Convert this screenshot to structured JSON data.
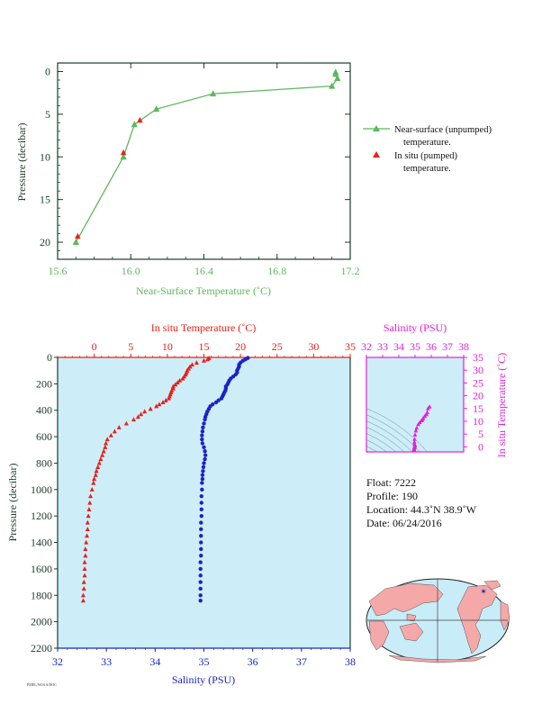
{
  "colors": {
    "green": "#5cb85c",
    "red": "#e8201a",
    "blue": "#1b23c8",
    "magenta": "#e020d8",
    "navy": "#1a1a8c",
    "dark": "#1a3c2a",
    "plot_bg": "#cdeef8",
    "land": "#f4a8a8",
    "ocean": "#c8ecf8"
  },
  "chart_data": [
    {
      "type": "scatter",
      "xlabel": "Near-Surface Temperature (˚C)",
      "ylabel": "Pressure (decibar)",
      "xlim": [
        15.6,
        17.2
      ],
      "ylim": [
        22,
        -1
      ],
      "x_ticks": [
        "15.6",
        "16.0",
        "16.4",
        "16.8",
        "17.2"
      ],
      "y_ticks": [
        "0",
        "5",
        "10",
        "15",
        "20"
      ],
      "legend": {
        "position": "right",
        "line1_a": "Near-surface (unpumped)",
        "line1_b": "temperature.",
        "line2_a": "In situ (pumped)",
        "line2_b": "temperature."
      },
      "series": [
        {
          "name": "Near-surface (unpumped) temperature.",
          "points": [
            [
              17.12,
              0.1
            ],
            [
              17.12,
              0.3
            ],
            [
              17.13,
              0.8
            ],
            [
              17.1,
              1.7
            ],
            [
              16.45,
              2.6
            ],
            [
              16.14,
              4.4
            ],
            [
              16.02,
              6.2
            ],
            [
              15.96,
              10
            ],
            [
              15.7,
              20
            ]
          ]
        },
        {
          "name": "In situ (pumped) temperature.",
          "points": [
            [
              16.05,
              5.7
            ],
            [
              15.96,
              9.5
            ],
            [
              15.71,
              19.3
            ]
          ]
        }
      ]
    },
    {
      "type": "scatter",
      "ylabel": "Pressure (decibar)",
      "top_xlabel": "In situ Temperature (˚C)",
      "bottom_xlabel": "Salinity (PSU)",
      "temp_lim": [
        -5,
        35
      ],
      "sal_lim": [
        32,
        38
      ],
      "ylim": [
        0,
        2200
      ],
      "temp_ticks": [
        "0",
        "5",
        "10",
        "15",
        "20",
        "25",
        "30",
        "35"
      ],
      "sal_ticks": [
        "32",
        "33",
        "34",
        "35",
        "36",
        "37",
        "38"
      ],
      "y_ticks": [
        "0",
        "200",
        "400",
        "600",
        "800",
        "1000",
        "1200",
        "1400",
        "1600",
        "1800",
        "2000",
        "2200"
      ],
      "series": [
        {
          "name": "In situ Temperature",
          "points": [
            [
              15.7,
              5
            ],
            [
              15.5,
              15
            ],
            [
              15,
              25
            ],
            [
              14,
              40
            ],
            [
              13.4,
              55
            ],
            [
              13.1,
              70
            ],
            [
              12.9,
              85
            ],
            [
              12.7,
              100
            ],
            [
              12.6,
              115
            ],
            [
              12.5,
              130
            ],
            [
              12.3,
              145
            ],
            [
              12.1,
              160
            ],
            [
              11.7,
              175
            ],
            [
              11.4,
              190
            ],
            [
              11.1,
              205
            ],
            [
              10.8,
              220
            ],
            [
              10.8,
              235
            ],
            [
              10.6,
              250
            ],
            [
              10.5,
              265
            ],
            [
              10.4,
              280
            ],
            [
              10.3,
              295
            ],
            [
              10.2,
              310
            ],
            [
              9.8,
              325
            ],
            [
              9.4,
              340
            ],
            [
              8.9,
              355
            ],
            [
              8.5,
              370
            ],
            [
              7.7,
              390
            ],
            [
              6.9,
              410
            ],
            [
              6.4,
              430
            ],
            [
              6.0,
              450
            ],
            [
              5.4,
              470
            ],
            [
              4.4,
              500
            ],
            [
              3.4,
              530
            ],
            [
              2.8,
              560
            ],
            [
              2.3,
              590
            ],
            [
              1.8,
              620
            ],
            [
              1.6,
              650
            ],
            [
              1.5,
              680
            ],
            [
              1.3,
              710
            ],
            [
              1.1,
              740
            ],
            [
              0.9,
              770
            ],
            [
              0.7,
              800
            ],
            [
              0.5,
              830
            ],
            [
              0.3,
              860
            ],
            [
              0.2,
              890
            ],
            [
              0.0,
              920
            ],
            [
              -0.1,
              950
            ],
            [
              -0.3,
              1000
            ],
            [
              -0.5,
              1050
            ],
            [
              -0.6,
              1100
            ],
            [
              -0.7,
              1150
            ],
            [
              -0.8,
              1200
            ],
            [
              -0.9,
              1250
            ],
            [
              -0.9,
              1300
            ],
            [
              -1.0,
              1350
            ],
            [
              -1.1,
              1400
            ],
            [
              -1.2,
              1450
            ],
            [
              -1.2,
              1500
            ],
            [
              -1.3,
              1550
            ],
            [
              -1.3,
              1600
            ],
            [
              -1.3,
              1650
            ],
            [
              -1.4,
              1700
            ],
            [
              -1.4,
              1750
            ],
            [
              -1.5,
              1800
            ],
            [
              -1.5,
              1840
            ]
          ]
        },
        {
          "name": "Salinity",
          "points": [
            [
              35.9,
              5
            ],
            [
              35.85,
              15
            ],
            [
              35.8,
              25
            ],
            [
              35.75,
              40
            ],
            [
              35.72,
              55
            ],
            [
              35.72,
              70
            ],
            [
              35.7,
              85
            ],
            [
              35.68,
              100
            ],
            [
              35.68,
              115
            ],
            [
              35.65,
              130
            ],
            [
              35.6,
              145
            ],
            [
              35.55,
              160
            ],
            [
              35.52,
              175
            ],
            [
              35.5,
              190
            ],
            [
              35.48,
              205
            ],
            [
              35.45,
              220
            ],
            [
              35.45,
              235
            ],
            [
              35.44,
              250
            ],
            [
              35.42,
              265
            ],
            [
              35.4,
              280
            ],
            [
              35.38,
              295
            ],
            [
              35.36,
              310
            ],
            [
              35.3,
              325
            ],
            [
              35.25,
              340
            ],
            [
              35.18,
              355
            ],
            [
              35.13,
              370
            ],
            [
              35.1,
              390
            ],
            [
              35.07,
              410
            ],
            [
              35.05,
              430
            ],
            [
              35.03,
              450
            ],
            [
              35.02,
              470
            ],
            [
              35.0,
              500
            ],
            [
              34.98,
              530
            ],
            [
              34.97,
              560
            ],
            [
              34.96,
              590
            ],
            [
              34.96,
              620
            ],
            [
              34.97,
              650
            ],
            [
              35.0,
              680
            ],
            [
              35.02,
              710
            ],
            [
              35.03,
              740
            ],
            [
              35.02,
              770
            ],
            [
              35.0,
              800
            ],
            [
              34.99,
              830
            ],
            [
              34.98,
              860
            ],
            [
              34.97,
              890
            ],
            [
              34.97,
              920
            ],
            [
              34.96,
              950
            ],
            [
              34.96,
              1000
            ],
            [
              34.95,
              1050
            ],
            [
              34.95,
              1100
            ],
            [
              34.95,
              1150
            ],
            [
              34.95,
              1200
            ],
            [
              34.94,
              1250
            ],
            [
              34.94,
              1300
            ],
            [
              34.94,
              1350
            ],
            [
              34.94,
              1400
            ],
            [
              34.94,
              1450
            ],
            [
              34.94,
              1500
            ],
            [
              34.93,
              1550
            ],
            [
              34.93,
              1600
            ],
            [
              34.93,
              1650
            ],
            [
              34.93,
              1700
            ],
            [
              34.93,
              1750
            ],
            [
              34.93,
              1800
            ],
            [
              34.93,
              1840
            ]
          ]
        }
      ]
    },
    {
      "type": "scatter",
      "top_xlabel": "Salinity (PSU)",
      "right_ylabel": "In situ Temperature (˚C)",
      "xlim": [
        32,
        38
      ],
      "ylim": [
        -2,
        35
      ],
      "x_ticks": [
        "32",
        "33",
        "34",
        "35",
        "36",
        "37",
        "38"
      ],
      "y_ticks": [
        "0",
        "5",
        "10",
        "15",
        "20",
        "25",
        "30",
        "35"
      ],
      "points": [
        [
          35.9,
          15.7
        ],
        [
          35.8,
          15
        ],
        [
          35.75,
          13.5
        ],
        [
          35.7,
          12.7
        ],
        [
          35.6,
          12
        ],
        [
          35.5,
          11.2
        ],
        [
          35.45,
          10.6
        ],
        [
          35.4,
          10.3
        ],
        [
          35.3,
          9.6
        ],
        [
          35.2,
          8.8
        ],
        [
          35.1,
          7.4
        ],
        [
          35.05,
          6.3
        ],
        [
          35.0,
          4.7
        ],
        [
          34.97,
          3
        ],
        [
          34.96,
          1.8
        ],
        [
          34.97,
          1.0
        ],
        [
          35.0,
          0.6
        ],
        [
          34.98,
          0.2
        ],
        [
          34.96,
          -0.2
        ],
        [
          34.95,
          -0.7
        ],
        [
          34.94,
          -1.0
        ],
        [
          34.93,
          -1.3
        ],
        [
          34.93,
          -1.5
        ]
      ]
    }
  ],
  "float_info": {
    "float": "Float:  7222",
    "profile": "Profile:  190",
    "location": "Location:  44.3˚N  38.9˚W",
    "date": "Date:  06/24/2016"
  },
  "footer_text": "PMEL/NOAA/DOC"
}
